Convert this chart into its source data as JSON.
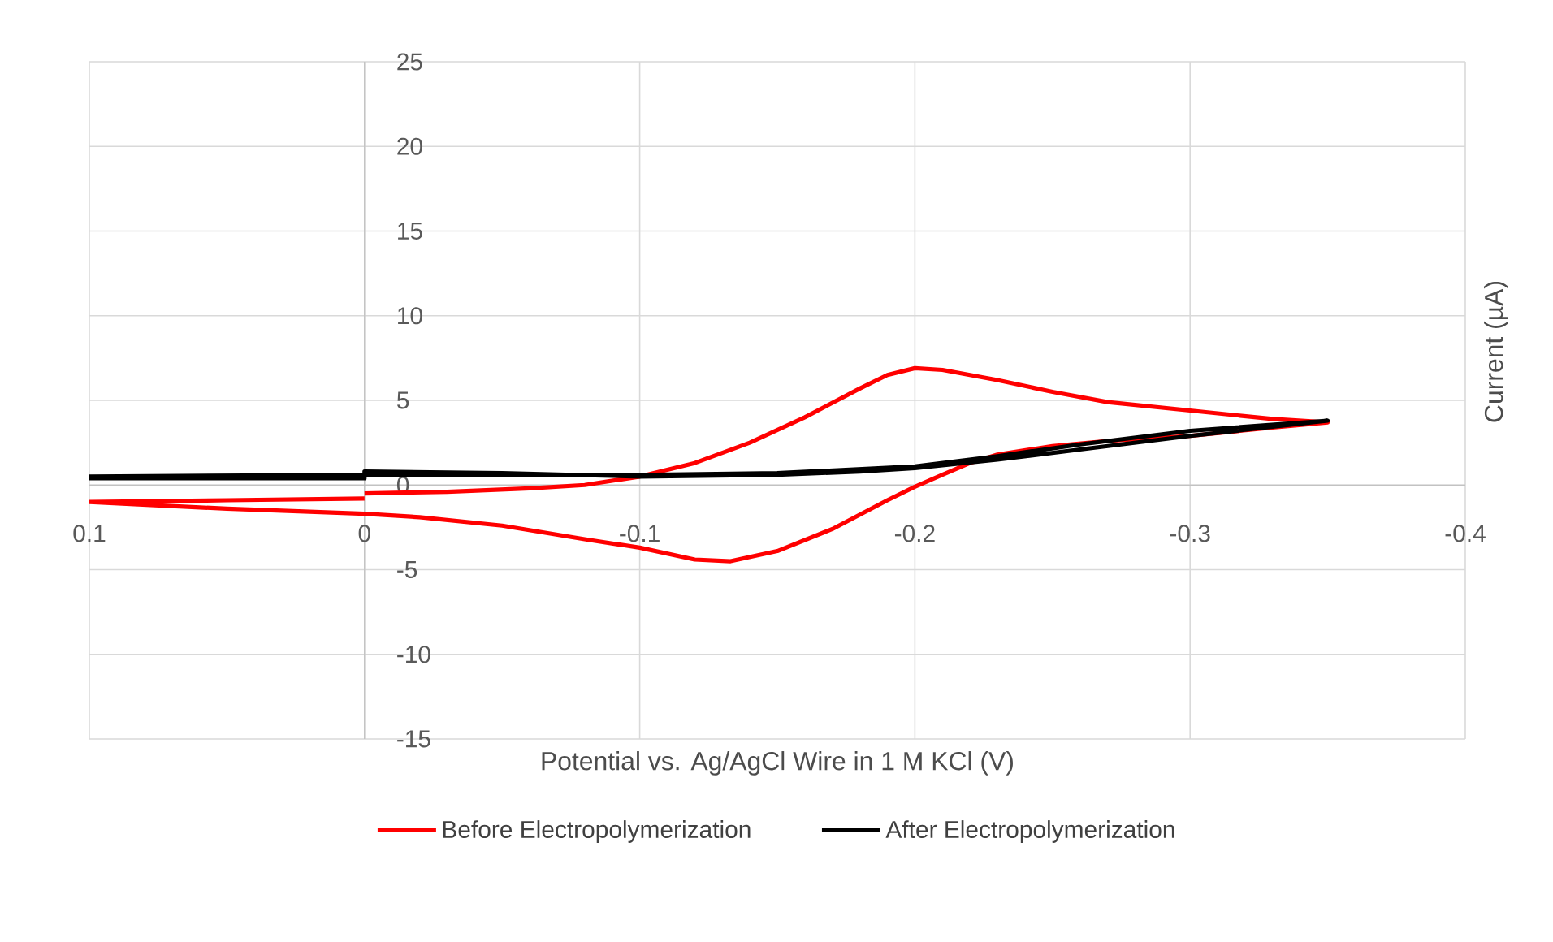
{
  "chart_data": {
    "type": "line",
    "xlabel": "Potential vs. Ag/AgCl Wire in 1 M KCl (V)",
    "ylabel": "Current (µA)",
    "xlim": [
      0.1,
      -0.4
    ],
    "xticks": [
      0.1,
      0,
      -0.1,
      -0.2,
      -0.3,
      -0.4
    ],
    "ylim": [
      -15,
      25
    ],
    "yticks": [
      -15,
      -10,
      -5,
      0,
      5,
      10,
      15,
      20,
      25
    ],
    "grid": true,
    "legend": "bottom",
    "series": [
      {
        "name": "Before Electropolymerization",
        "color": "#ff0000",
        "x": [
          0,
          -0.03,
          -0.06,
          -0.08,
          -0.1,
          -0.12,
          -0.14,
          -0.16,
          -0.18,
          -0.19,
          -0.2,
          -0.21,
          -0.23,
          -0.25,
          -0.27,
          -0.3,
          -0.33,
          -0.35,
          -0.33,
          -0.3,
          -0.27,
          -0.25,
          -0.23,
          -0.22,
          -0.21,
          -0.2,
          -0.19,
          -0.17,
          -0.15,
          -0.133,
          -0.12,
          -0.1,
          -0.08,
          -0.05,
          -0.02,
          0,
          0.05,
          0.1,
          0.05,
          0
        ],
        "values": [
          -0.5,
          -0.4,
          -0.2,
          0,
          0.5,
          1.3,
          2.5,
          4.0,
          5.7,
          6.5,
          6.9,
          6.8,
          6.2,
          5.5,
          4.9,
          4.4,
          3.9,
          3.7,
          3.4,
          2.9,
          2.6,
          2.3,
          1.8,
          1.3,
          0.6,
          -0.1,
          -0.9,
          -2.6,
          -3.9,
          -4.5,
          -4.4,
          -3.7,
          -3.2,
          -2.4,
          -1.9,
          -1.7,
          -1.4,
          -1.0,
          -0.9,
          -0.8
        ]
      },
      {
        "name": "After Electropolymerization",
        "color": "#000000",
        "x": [
          0.1,
          0,
          0,
          -0.05,
          -0.1,
          -0.15,
          -0.18,
          -0.2,
          -0.23,
          -0.26,
          -0.3,
          -0.35,
          -0.3,
          -0.26,
          -0.23,
          -0.2,
          -0.15,
          -0.1,
          0,
          0.1
        ],
        "values": [
          0.4,
          0.4,
          0.8,
          0.7,
          0.5,
          0.6,
          0.8,
          1.0,
          1.5,
          2.1,
          2.9,
          3.8,
          3.2,
          2.4,
          1.7,
          1.1,
          0.7,
          0.6,
          0.6,
          0.5
        ]
      }
    ]
  }
}
